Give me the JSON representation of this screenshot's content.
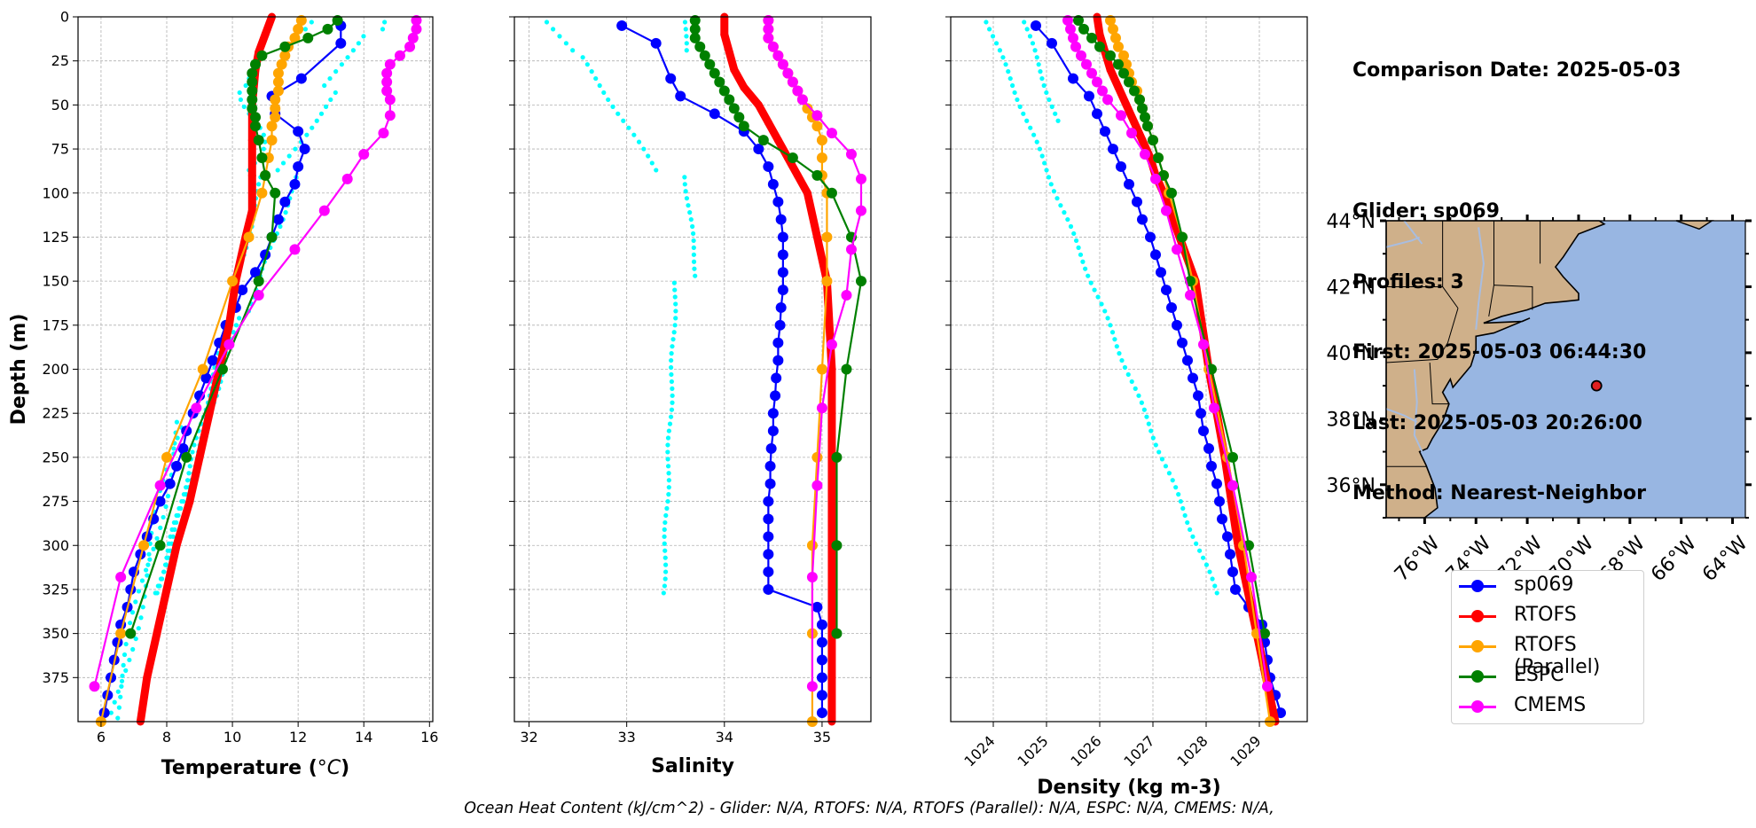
{
  "chart_data": [
    {
      "type": "line",
      "xlabel": "Temperature (°C)",
      "ylabel": "Depth (m)",
      "xlim": [
        5.3,
        16.1
      ],
      "ylim": [
        400,
        0
      ],
      "xticks": [
        6,
        8,
        10,
        12,
        14,
        16
      ],
      "yticks": [
        0,
        25,
        50,
        75,
        100,
        125,
        150,
        175,
        200,
        225,
        250,
        275,
        300,
        325,
        350,
        375
      ],
      "grid": true,
      "series": [
        {
          "name": "sp069",
          "color": "#0000ff",
          "depth": [
            5,
            15,
            35,
            45,
            55,
            65,
            75,
            85,
            95,
            105,
            115,
            125,
            135,
            145,
            155,
            165,
            175,
            185,
            195,
            205,
            215,
            225,
            235,
            245,
            255,
            265,
            275,
            285,
            295,
            305,
            315,
            325,
            335,
            345,
            355,
            365,
            375,
            385,
            395
          ],
          "values": [
            13.3,
            13.3,
            12.1,
            11.2,
            11.3,
            12.0,
            12.2,
            12.0,
            11.9,
            11.6,
            11.4,
            11.2,
            11.0,
            10.7,
            10.3,
            10.1,
            9.8,
            9.6,
            9.4,
            9.2,
            9.0,
            8.8,
            8.6,
            8.5,
            8.3,
            8.1,
            7.8,
            7.6,
            7.4,
            7.2,
            7.0,
            6.9,
            6.8,
            6.6,
            6.5,
            6.4,
            6.3,
            6.2,
            6.1
          ]
        },
        {
          "name": "RTOFS",
          "color": "#ff0000",
          "depth": [
            0,
            10,
            20,
            30,
            50,
            70,
            90,
            110,
            125,
            150,
            175,
            200,
            225,
            250,
            275,
            300,
            325,
            350,
            375,
            400
          ],
          "values": [
            11.2,
            11.0,
            10.8,
            10.7,
            10.6,
            10.6,
            10.6,
            10.6,
            10.4,
            10.1,
            9.9,
            9.6,
            9.3,
            9.0,
            8.7,
            8.3,
            8.0,
            7.7,
            7.4,
            7.2
          ]
        },
        {
          "name": "RTOFS (Parallel)",
          "color": "#ffa500",
          "depth": [
            2,
            7,
            12,
            17,
            22,
            27,
            32,
            37,
            42,
            47,
            52,
            57,
            62,
            70,
            80,
            90,
            100,
            125,
            150,
            200,
            250,
            300,
            350,
            400
          ],
          "values": [
            12.1,
            12.0,
            11.9,
            11.7,
            11.6,
            11.5,
            11.4,
            11.4,
            11.4,
            11.3,
            11.3,
            11.3,
            11.2,
            11.2,
            11.1,
            11.0,
            10.9,
            10.5,
            10.0,
            9.1,
            8.0,
            7.3,
            6.6,
            6.0
          ]
        },
        {
          "name": "ESPC",
          "color": "#008000",
          "depth": [
            2,
            7,
            12,
            17,
            22,
            27,
            32,
            37,
            42,
            47,
            52,
            57,
            62,
            70,
            80,
            90,
            100,
            125,
            150,
            200,
            250,
            300,
            350
          ],
          "values": [
            13.2,
            12.9,
            12.3,
            11.6,
            10.9,
            10.7,
            10.6,
            10.6,
            10.6,
            10.6,
            10.6,
            10.7,
            10.7,
            10.8,
            10.9,
            11.0,
            11.3,
            11.2,
            10.8,
            9.7,
            8.6,
            7.8,
            6.9
          ]
        },
        {
          "name": "CMEMS",
          "color": "#ff00ff",
          "depth": [
            2,
            7,
            12,
            17,
            22,
            27,
            32,
            37,
            42,
            47,
            56,
            66,
            78,
            92,
            110,
            132,
            158,
            186,
            222,
            266,
            318,
            380
          ],
          "values": [
            15.6,
            15.6,
            15.5,
            15.4,
            15.1,
            14.8,
            14.7,
            14.7,
            14.7,
            14.8,
            14.8,
            14.6,
            14.0,
            13.5,
            12.8,
            11.9,
            10.8,
            9.9,
            8.9,
            7.8,
            6.6,
            5.8
          ]
        }
      ]
    },
    {
      "type": "line",
      "xlabel": "Salinity",
      "xlim": [
        31.85,
        35.5
      ],
      "ylim": [
        400,
        0
      ],
      "xticks": [
        32,
        33,
        34,
        35
      ],
      "yticks": [
        0,
        25,
        50,
        75,
        100,
        125,
        150,
        175,
        200,
        225,
        250,
        275,
        300,
        325,
        350,
        375
      ],
      "grid": true,
      "series": [
        {
          "name": "sp069",
          "color": "#0000ff",
          "depth": [
            5,
            15,
            35,
            45,
            55,
            65,
            75,
            85,
            95,
            105,
            115,
            125,
            135,
            145,
            155,
            165,
            175,
            185,
            195,
            205,
            215,
            225,
            235,
            245,
            255,
            265,
            275,
            285,
            295,
            305,
            315,
            325,
            335,
            345,
            355,
            365,
            375,
            385,
            395
          ],
          "values": [
            32.95,
            33.3,
            33.45,
            33.55,
            33.9,
            34.2,
            34.35,
            34.45,
            34.5,
            34.55,
            34.58,
            34.6,
            34.6,
            34.6,
            34.6,
            34.58,
            34.57,
            34.55,
            34.55,
            34.53,
            34.52,
            34.5,
            34.5,
            34.48,
            34.47,
            34.47,
            34.45,
            34.45,
            34.45,
            34.45,
            34.45,
            34.45,
            34.95,
            35.0,
            35.0,
            35.0,
            35.0,
            35.0,
            35.0
          ]
        },
        {
          "name": "RTOFS",
          "color": "#ff0000",
          "depth": [
            0,
            10,
            20,
            30,
            40,
            50,
            60,
            70,
            80,
            90,
            100,
            125,
            150,
            200,
            250,
            300,
            350,
            400
          ],
          "values": [
            34.0,
            34.0,
            34.05,
            34.1,
            34.2,
            34.35,
            34.45,
            34.55,
            34.65,
            34.75,
            34.85,
            34.95,
            35.05,
            35.1,
            35.1,
            35.1,
            35.1,
            35.1
          ]
        },
        {
          "name": "RTOFS (Parallel)",
          "color": "#ffa500",
          "depth": [
            2,
            7,
            12,
            17,
            22,
            27,
            32,
            37,
            42,
            47,
            52,
            57,
            62,
            70,
            80,
            90,
            100,
            125,
            150,
            200,
            250,
            300,
            350,
            400
          ],
          "values": [
            34.45,
            34.45,
            34.45,
            34.5,
            34.55,
            34.6,
            34.65,
            34.7,
            34.75,
            34.8,
            34.85,
            34.9,
            34.95,
            35.0,
            35.0,
            35.0,
            35.05,
            35.05,
            35.05,
            35.0,
            34.95,
            34.9,
            34.9,
            34.9
          ]
        },
        {
          "name": "ESPC",
          "color": "#008000",
          "depth": [
            2,
            7,
            12,
            17,
            22,
            27,
            32,
            37,
            42,
            47,
            52,
            57,
            62,
            70,
            80,
            90,
            100,
            125,
            150,
            200,
            250,
            300,
            350
          ],
          "values": [
            33.7,
            33.7,
            33.7,
            33.75,
            33.8,
            33.85,
            33.9,
            33.95,
            34.0,
            34.05,
            34.1,
            34.15,
            34.2,
            34.4,
            34.7,
            34.95,
            35.1,
            35.3,
            35.4,
            35.25,
            35.15,
            35.15,
            35.15
          ]
        },
        {
          "name": "CMEMS",
          "color": "#ff00ff",
          "depth": [
            2,
            7,
            12,
            17,
            22,
            27,
            32,
            37,
            42,
            47,
            56,
            66,
            78,
            92,
            110,
            132,
            158,
            186,
            222,
            266,
            318,
            380
          ],
          "values": [
            34.45,
            34.45,
            34.45,
            34.5,
            34.55,
            34.6,
            34.65,
            34.7,
            34.75,
            34.8,
            34.95,
            35.1,
            35.3,
            35.4,
            35.4,
            35.3,
            35.25,
            35.1,
            35.0,
            34.95,
            34.9,
            34.9
          ]
        }
      ]
    },
    {
      "type": "line",
      "xlabel": "Density (kg m-3)",
      "xlim": [
        1023.2,
        1029.9
      ],
      "ylim": [
        400,
        0
      ],
      "xticks": [
        1024,
        1025,
        1026,
        1027,
        1028,
        1029
      ],
      "yticks": [
        0,
        25,
        50,
        75,
        100,
        125,
        150,
        175,
        200,
        225,
        250,
        275,
        300,
        325,
        350,
        375
      ],
      "grid": true,
      "series": [
        {
          "name": "sp069",
          "color": "#0000ff",
          "depth": [
            5,
            15,
            35,
            45,
            55,
            65,
            75,
            85,
            95,
            105,
            115,
            125,
            135,
            145,
            155,
            165,
            175,
            185,
            195,
            205,
            215,
            225,
            235,
            245,
            255,
            265,
            275,
            285,
            295,
            305,
            315,
            325,
            335,
            345,
            355,
            365,
            375,
            385,
            395
          ],
          "values": [
            1024.8,
            1025.1,
            1025.5,
            1025.8,
            1025.95,
            1026.1,
            1026.25,
            1026.4,
            1026.55,
            1026.7,
            1026.8,
            1026.95,
            1027.05,
            1027.15,
            1027.25,
            1027.35,
            1027.45,
            1027.55,
            1027.65,
            1027.75,
            1027.85,
            1027.9,
            1027.95,
            1028.05,
            1028.1,
            1028.2,
            1028.25,
            1028.3,
            1028.4,
            1028.45,
            1028.5,
            1028.55,
            1028.8,
            1029.05,
            1029.1,
            1029.15,
            1029.2,
            1029.3,
            1029.4
          ]
        },
        {
          "name": "RTOFS",
          "color": "#ff0000",
          "depth": [
            0,
            10,
            20,
            30,
            40,
            50,
            60,
            70,
            80,
            90,
            100,
            125,
            150,
            200,
            250,
            300,
            350,
            400
          ],
          "values": [
            1025.95,
            1026.0,
            1026.1,
            1026.2,
            1026.35,
            1026.5,
            1026.65,
            1026.8,
            1026.95,
            1027.05,
            1027.2,
            1027.5,
            1027.8,
            1028.05,
            1028.35,
            1028.6,
            1028.95,
            1029.3
          ]
        },
        {
          "name": "RTOFS (Parallel)",
          "color": "#ffa500",
          "depth": [
            2,
            7,
            12,
            17,
            22,
            27,
            32,
            37,
            42,
            47,
            52,
            57,
            62,
            70,
            80,
            90,
            100,
            125,
            150,
            200,
            250,
            300,
            350,
            400
          ],
          "values": [
            1026.2,
            1026.25,
            1026.3,
            1026.35,
            1026.45,
            1026.5,
            1026.55,
            1026.6,
            1026.7,
            1026.75,
            1026.8,
            1026.85,
            1026.9,
            1027.0,
            1027.1,
            1027.2,
            1027.3,
            1027.55,
            1027.75,
            1028.05,
            1028.4,
            1028.7,
            1028.95,
            1029.2
          ]
        },
        {
          "name": "ESPC",
          "color": "#008000",
          "depth": [
            2,
            7,
            12,
            17,
            22,
            27,
            32,
            37,
            42,
            47,
            52,
            57,
            62,
            70,
            80,
            90,
            100,
            125,
            150,
            200,
            250,
            300,
            350
          ],
          "values": [
            1025.6,
            1025.7,
            1025.85,
            1026.0,
            1026.2,
            1026.35,
            1026.45,
            1026.55,
            1026.65,
            1026.75,
            1026.8,
            1026.85,
            1026.9,
            1027.0,
            1027.1,
            1027.2,
            1027.35,
            1027.55,
            1027.7,
            1028.1,
            1028.5,
            1028.8,
            1029.1
          ]
        },
        {
          "name": "CMEMS",
          "color": "#ff00ff",
          "depth": [
            2,
            7,
            12,
            17,
            22,
            27,
            32,
            37,
            42,
            47,
            56,
            66,
            78,
            92,
            110,
            132,
            158,
            186,
            222,
            266,
            318,
            380
          ],
          "values": [
            1025.4,
            1025.45,
            1025.5,
            1025.55,
            1025.65,
            1025.75,
            1025.85,
            1025.95,
            1026.05,
            1026.15,
            1026.4,
            1026.6,
            1026.85,
            1027.05,
            1027.25,
            1027.45,
            1027.7,
            1027.95,
            1028.15,
            1028.5,
            1028.85,
            1029.15
          ]
        }
      ]
    }
  ],
  "map": {
    "lon_range": [
      -77.5,
      -63.5
    ],
    "lat_range": [
      35,
      44
    ],
    "lat_ticks": [
      "44°N",
      "42°N",
      "40°N",
      "38°N",
      "36°N"
    ],
    "lat_values": [
      44,
      42,
      40,
      38,
      36
    ],
    "lon_ticks": [
      "76°W",
      "74°W",
      "72°W",
      "70°W",
      "68°W",
      "66°W",
      "64°W"
    ],
    "lon_values": [
      -76,
      -74,
      -72,
      -70,
      -68,
      -66,
      -64
    ],
    "ocean_color": "#98b6e2",
    "land_color": "#cfb08a",
    "glider_position": {
      "lon": -69.3,
      "lat": 39.0
    }
  },
  "info": {
    "comparison_date": "Comparison Date: 2025-05-03",
    "glider": "Glider: sp069",
    "profiles": "Profiles: 3",
    "first": "First: 2025-05-03 06:44:30",
    "last": "Last: 2025-05-03 20:26:00",
    "method": "Method: Nearest-Neighbor"
  },
  "legend": {
    "entries": [
      {
        "label": "sp069",
        "color": "#0000ff"
      },
      {
        "label": "RTOFS",
        "color": "#ff0000"
      },
      {
        "label": "RTOFS (Parallel)",
        "color": "#ffa500"
      },
      {
        "label": "ESPC",
        "color": "#008000"
      },
      {
        "label": "CMEMS",
        "color": "#ff00ff"
      }
    ]
  },
  "footer": "Ocean Heat Content (kJ/cm^2) - Glider: N/A,  RTOFS: N/A,  RTOFS (Parallel): N/A,  ESPC: N/A,  CMEMS: N/A,"
}
